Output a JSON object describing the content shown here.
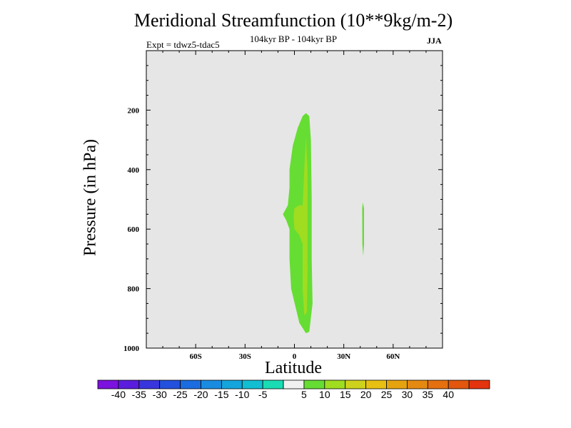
{
  "chart_data": {
    "type": "contour",
    "title": "Meridional Streamfunction (10**9kg/m-2)",
    "subtitle": "104kyr BP - 104kyr BP",
    "expt_label": "Expt = tdwz5-tdac5",
    "season": "JJA",
    "xlabel": "Latitude",
    "ylabel": "Pressure (in hPa)",
    "xlim": [
      -90,
      90
    ],
    "ylim": [
      1000,
      0
    ],
    "x_ticks": [
      {
        "value": -60,
        "label": "60S"
      },
      {
        "value": -30,
        "label": "30S"
      },
      {
        "value": 0,
        "label": "0"
      },
      {
        "value": 30,
        "label": "30N"
      },
      {
        "value": 60,
        "label": "60N"
      }
    ],
    "y_ticks": [
      {
        "value": 200,
        "label": "200"
      },
      {
        "value": 400,
        "label": "400"
      },
      {
        "value": 600,
        "label": "600"
      },
      {
        "value": 800,
        "label": "800"
      },
      {
        "value": 1000,
        "label": "1000"
      }
    ],
    "background_color": "#e6e6e6",
    "regions": [
      {
        "level": "5 to 10",
        "color": "#66dd33",
        "points": [
          [
            7,
            210
          ],
          [
            9,
            220
          ],
          [
            10,
            300
          ],
          [
            10.5,
            500
          ],
          [
            10.5,
            700
          ],
          [
            11,
            850
          ],
          [
            9,
            945
          ],
          [
            7,
            950
          ],
          [
            3,
            915
          ],
          [
            -2,
            800
          ],
          [
            -3,
            700
          ],
          [
            -3,
            600
          ],
          [
            -5,
            570
          ],
          [
            -7,
            550
          ],
          [
            -4,
            520
          ],
          [
            -3,
            460
          ],
          [
            -3,
            400
          ],
          [
            -1,
            320
          ],
          [
            2,
            260
          ],
          [
            5,
            220
          ]
        ]
      },
      {
        "level": "10 to 15",
        "color": "#a0dc20",
        "points": [
          [
            7,
            290
          ],
          [
            8,
            400
          ],
          [
            8,
            500
          ],
          [
            8,
            600
          ],
          [
            8,
            750
          ],
          [
            7.5,
            880
          ],
          [
            6,
            890
          ],
          [
            5,
            800
          ],
          [
            5,
            650
          ],
          [
            3,
            620
          ],
          [
            0,
            600
          ],
          [
            -0.5,
            560
          ],
          [
            0,
            530
          ],
          [
            3,
            520
          ],
          [
            5,
            520
          ],
          [
            6,
            400
          ]
        ]
      },
      {
        "level": "5 to 10",
        "color": "#66dd33",
        "points": [
          [
            41.5,
            510
          ],
          [
            42.3,
            530
          ],
          [
            42.3,
            650
          ],
          [
            41.8,
            690
          ],
          [
            41.3,
            650
          ],
          [
            41.2,
            530
          ]
        ]
      }
    ],
    "colorbar": {
      "colors": [
        "#7b12dd",
        "#5a1ddd",
        "#3a36dd",
        "#2350dd",
        "#1a6ce0",
        "#1a8ce0",
        "#14a5dc",
        "#12bed2",
        "#1adcb4",
        "#f0f0f0",
        "#66dd33",
        "#a0dc20",
        "#cfd21c",
        "#e8c014",
        "#e6a310",
        "#e58a10",
        "#e5700f",
        "#e2560e",
        "#e3340e"
      ],
      "labels": [
        "-40",
        "-35",
        "-30",
        "-25",
        "-20",
        "-15",
        "-10",
        "-5",
        "5",
        "10",
        "15",
        "20",
        "25",
        "30",
        "35",
        "40"
      ]
    }
  }
}
